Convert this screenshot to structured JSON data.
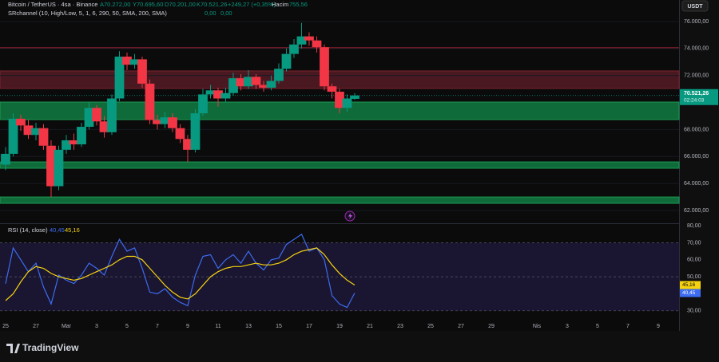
{
  "header": {
    "symbol": "Bitcoin / TetherUS · 4sa · Binance",
    "open": "A70.272,00",
    "high": "Y70.695,60",
    "low": "D70.201,00",
    "close": "K70.521,26",
    "change": "+249,27 (+0,35%)",
    "volume_label": "Hacim",
    "volume": "755,56",
    "indicator": "SRchannel (10, High/Low, 5, 1, 6, 290, 50, SMA, 200, SMA)",
    "indicator_value_1": "0,00",
    "indicator_value_2": "0,00"
  },
  "toolbar": {
    "currency": "USDT"
  },
  "footer": {
    "brand": "TradingView"
  },
  "chart_data": [
    {
      "type": "candlestick",
      "up_color": "#089981",
      "down_color": "#f23645",
      "x": [
        0,
        0.5,
        1,
        1.5,
        2,
        2.5,
        3,
        3.5,
        4,
        4.5,
        5,
        5.5,
        6,
        6.5,
        7,
        7.5,
        8,
        8.5,
        9,
        9.5,
        10,
        10.5,
        11,
        11.5,
        12,
        12.5,
        13,
        13.5,
        14,
        14.5,
        15,
        15.5,
        16,
        16.5,
        17,
        17.5,
        18,
        18.5,
        19,
        19.5,
        20,
        20.5,
        21,
        21.5,
        22,
        22.5,
        23
      ],
      "open": [
        65400,
        66200,
        68800,
        68300,
        67600,
        68100,
        66800,
        63800,
        66500,
        67200,
        66900,
        68200,
        69600,
        68600,
        67800,
        70300,
        73400,
        72800,
        73200,
        71400,
        68700,
        68400,
        68900,
        68100,
        67300,
        66500,
        69200,
        70600,
        70900,
        70300,
        70700,
        71800,
        71200,
        71900,
        71300,
        71100,
        71600,
        72500,
        73600,
        74300,
        74900,
        74600,
        74100,
        71200,
        70800,
        69600,
        70272
      ],
      "high": [
        66700,
        69200,
        69100,
        68700,
        68500,
        68400,
        67200,
        66800,
        67600,
        67700,
        68500,
        70000,
        69800,
        69000,
        70600,
        73800,
        73700,
        73600,
        73400,
        71700,
        69100,
        69300,
        69200,
        68400,
        67600,
        69500,
        71000,
        71300,
        71100,
        71100,
        72200,
        72100,
        72400,
        72100,
        71600,
        72000,
        72900,
        74000,
        74700,
        75900,
        75200,
        74900,
        74300,
        71400,
        71000,
        70600,
        70695.6
      ],
      "low": [
        65000,
        66000,
        67900,
        67300,
        67200,
        66500,
        63000,
        63500,
        66200,
        66500,
        66700,
        68000,
        68300,
        67400,
        67600,
        70100,
        72400,
        72500,
        71100,
        68400,
        68000,
        68100,
        67800,
        67000,
        65600,
        66300,
        69000,
        70300,
        69700,
        70000,
        70500,
        70900,
        71000,
        71000,
        70800,
        70900,
        71400,
        72300,
        73300,
        74000,
        74200,
        73700,
        70900,
        70300,
        69200,
        69300,
        70201
      ],
      "close": [
        66200,
        68800,
        68300,
        67600,
        68100,
        66800,
        63800,
        66500,
        67200,
        66900,
        68200,
        69600,
        68600,
        67800,
        70300,
        73400,
        72800,
        73200,
        71400,
        68700,
        68400,
        68900,
        68100,
        67300,
        66500,
        69200,
        70600,
        70900,
        70300,
        70700,
        71800,
        71200,
        71900,
        71300,
        71100,
        71600,
        72500,
        73600,
        74300,
        74900,
        74600,
        74100,
        71200,
        70800,
        69600,
        70300,
        70521.26
      ],
      "xlim": [
        -0.368,
        44.37
      ],
      "ylim": [
        61055,
        77595
      ],
      "yticks": [
        {
          "value": 76000,
          "label": "76.000,00"
        },
        {
          "value": 74000,
          "label": "74.000,00"
        },
        {
          "value": 72000,
          "label": "72.000,00"
        },
        {
          "value": 68000,
          "label": "68.000,00"
        },
        {
          "value": 66000,
          "label": "66.000,00"
        },
        {
          "value": 64000,
          "label": "64.000,00"
        },
        {
          "value": 62000,
          "label": "62.000,00"
        }
      ],
      "zones": [
        {
          "from": 71040,
          "to": 72340,
          "color": "#4a1820",
          "border": "#7a2530"
        },
        {
          "from": 68735,
          "to": 70034,
          "color": "#0f6b3a",
          "border": "#1c9a52"
        },
        {
          "from": 65130,
          "to": 65600,
          "color": "#0f6b3a",
          "border": "#1c9a52"
        },
        {
          "from": 62530,
          "to": 63000,
          "color": "#0f6b3a",
          "border": "#1c9a52"
        }
      ],
      "levels": [
        {
          "value": 74050,
          "color": "#8a2030"
        }
      ],
      "last_price": {
        "value": 70521.26,
        "label": "70.521,26",
        "countdown": "02:24:03",
        "color": "#089981"
      }
    },
    {
      "type": "line",
      "title": "RSI (14, close)",
      "x": [
        0,
        0.5,
        1,
        1.5,
        2,
        2.5,
        3,
        3.5,
        4,
        4.5,
        5,
        5.5,
        6,
        6.5,
        7,
        7.5,
        8,
        8.5,
        9,
        9.5,
        10,
        10.5,
        11,
        11.5,
        12,
        12.5,
        13,
        13.5,
        14,
        14.5,
        15,
        15.5,
        16,
        16.5,
        17,
        17.5,
        18,
        18.5,
        19,
        19.5,
        20,
        20.5,
        21,
        21.5,
        22,
        22.5,
        23
      ],
      "series": [
        {
          "color": "#3d6cf0",
          "last_label": "40,45",
          "values": [
            46,
            67,
            60,
            53,
            58,
            44,
            34,
            51,
            48,
            46,
            51,
            58,
            55,
            51,
            62,
            72,
            65,
            67,
            55,
            41,
            40,
            43,
            38,
            35,
            33,
            51,
            62,
            63,
            55,
            60,
            63,
            58,
            65,
            58,
            54,
            60,
            61,
            69,
            72,
            75,
            65,
            67,
            60,
            39,
            34,
            32,
            40.45
          ]
        },
        {
          "color": "#f5d20f",
          "last_label": "45,16",
          "values": [
            36,
            40,
            47,
            53,
            56,
            55,
            52,
            50,
            49,
            48,
            49,
            51,
            53,
            55,
            57,
            60,
            62,
            62,
            60,
            55,
            50,
            45,
            41,
            38,
            37,
            40,
            45,
            50,
            53,
            55,
            56,
            56,
            57,
            58,
            57,
            57,
            58,
            60,
            63,
            65,
            66,
            67,
            63,
            57,
            52,
            48,
            45.16
          ]
        }
      ],
      "xlim": [
        -0.368,
        44.37
      ],
      "ylim": [
        25.7,
        81
      ],
      "yticks": [
        {
          "value": 80,
          "label": "80,00"
        },
        {
          "value": 70,
          "label": "70,00"
        },
        {
          "value": 60,
          "label": "60,00"
        },
        {
          "value": 50,
          "label": "50,00"
        },
        {
          "value": 30,
          "label": "30,00"
        }
      ],
      "band": [
        30,
        70
      ],
      "dashed": [
        70,
        50,
        30
      ],
      "xticks": [
        {
          "value": 0,
          "label": "25"
        },
        {
          "value": 2,
          "label": "27"
        },
        {
          "value": 4,
          "label": "Mar"
        },
        {
          "value": 6,
          "label": "3"
        },
        {
          "value": 8,
          "label": "5"
        },
        {
          "value": 10,
          "label": "7"
        },
        {
          "value": 12,
          "label": "9"
        },
        {
          "value": 14,
          "label": "11"
        },
        {
          "value": 16,
          "label": "13"
        },
        {
          "value": 18,
          "label": "15"
        },
        {
          "value": 20,
          "label": "17"
        },
        {
          "value": 22,
          "label": "19"
        },
        {
          "value": 24,
          "label": "21"
        },
        {
          "value": 26,
          "label": "23"
        },
        {
          "value": 28,
          "label": "25"
        },
        {
          "value": 30,
          "label": "27"
        },
        {
          "value": 32,
          "label": "29"
        },
        {
          "value": 35,
          "label": "Nis"
        },
        {
          "value": 37,
          "label": "3"
        },
        {
          "value": 39,
          "label": "5"
        },
        {
          "value": 41,
          "label": "7"
        },
        {
          "value": 43,
          "label": "9"
        }
      ]
    }
  ]
}
